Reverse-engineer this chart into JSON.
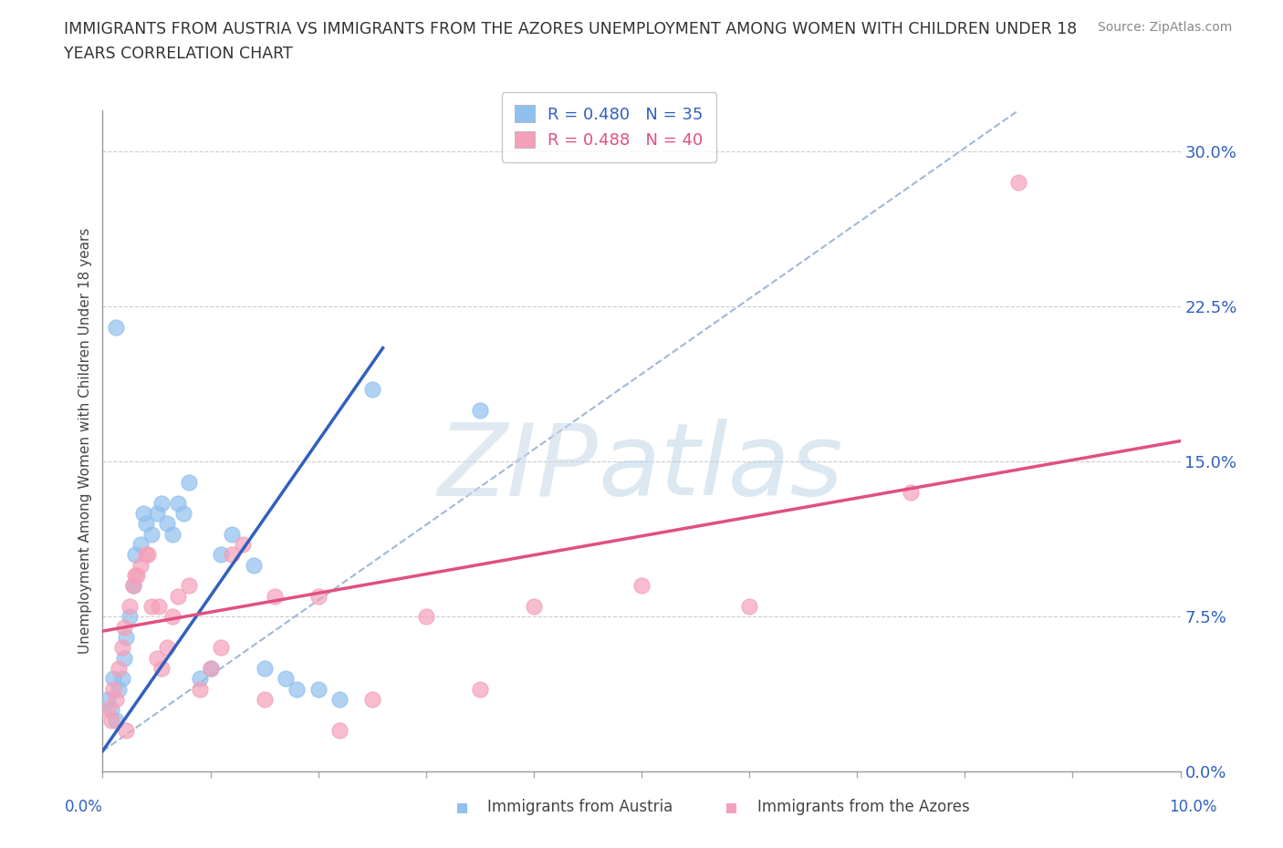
{
  "title": "IMMIGRANTS FROM AUSTRIA VS IMMIGRANTS FROM THE AZORES UNEMPLOYMENT AMONG WOMEN WITH CHILDREN UNDER 18\nYEARS CORRELATION CHART",
  "source": "Source: ZipAtlas.com",
  "ylabel": "Unemployment Among Women with Children Under 18 years",
  "xlim": [
    0.0,
    10.0
  ],
  "ylim": [
    0.0,
    32.0
  ],
  "yticks": [
    0.0,
    7.5,
    15.0,
    22.5,
    30.0
  ],
  "xticks": [
    0.0,
    1.0,
    2.0,
    3.0,
    4.0,
    5.0,
    6.0,
    7.0,
    8.0,
    9.0,
    10.0
  ],
  "austria_color": "#90C0EE",
  "azores_color": "#F4A0B8",
  "austria_R": 0.48,
  "austria_N": 35,
  "azores_R": 0.488,
  "azores_N": 40,
  "austria_line_color": "#3060C0",
  "azores_line_color": "#E05080",
  "diagonal_color": "#A0B8D8",
  "austria_line_x0": 0.0,
  "austria_line_y0": 1.0,
  "austria_line_x1": 2.6,
  "austria_line_y1": 20.5,
  "azores_line_x0": 0.0,
  "azores_line_y0": 6.8,
  "azores_line_x1": 10.0,
  "azores_line_y1": 16.0,
  "diag_x0": 0.0,
  "diag_y0": 1.0,
  "diag_x1": 8.5,
  "diag_y1": 32.0,
  "austria_x": [
    0.05,
    0.08,
    0.1,
    0.12,
    0.15,
    0.18,
    0.2,
    0.22,
    0.25,
    0.28,
    0.3,
    0.35,
    0.38,
    0.4,
    0.45,
    0.5,
    0.55,
    0.6,
    0.65,
    0.7,
    0.75,
    0.8,
    0.9,
    1.0,
    1.1,
    1.2,
    1.4,
    1.5,
    1.7,
    1.8,
    2.0,
    2.2,
    2.5,
    3.5,
    0.12
  ],
  "austria_y": [
    3.5,
    3.0,
    4.5,
    2.5,
    4.0,
    4.5,
    5.5,
    6.5,
    7.5,
    9.0,
    10.5,
    11.0,
    12.5,
    12.0,
    11.5,
    12.5,
    13.0,
    12.0,
    11.5,
    13.0,
    12.5,
    14.0,
    4.5,
    5.0,
    10.5,
    11.5,
    10.0,
    5.0,
    4.5,
    4.0,
    4.0,
    3.5,
    18.5,
    17.5,
    21.5
  ],
  "azores_x": [
    0.05,
    0.08,
    0.1,
    0.12,
    0.15,
    0.18,
    0.2,
    0.25,
    0.28,
    0.3,
    0.35,
    0.4,
    0.45,
    0.5,
    0.55,
    0.6,
    0.65,
    0.7,
    0.8,
    0.9,
    1.0,
    1.1,
    1.2,
    1.3,
    1.5,
    1.6,
    2.0,
    2.2,
    2.5,
    3.0,
    3.5,
    4.0,
    5.0,
    6.0,
    7.5,
    0.32,
    0.42,
    0.52,
    0.22,
    8.5
  ],
  "azores_y": [
    3.0,
    2.5,
    4.0,
    3.5,
    5.0,
    6.0,
    7.0,
    8.0,
    9.0,
    9.5,
    10.0,
    10.5,
    8.0,
    5.5,
    5.0,
    6.0,
    7.5,
    8.5,
    9.0,
    4.0,
    5.0,
    6.0,
    10.5,
    11.0,
    3.5,
    8.5,
    8.5,
    2.0,
    3.5,
    7.5,
    4.0,
    8.0,
    9.0,
    8.0,
    13.5,
    9.5,
    10.5,
    8.0,
    2.0,
    28.5
  ]
}
